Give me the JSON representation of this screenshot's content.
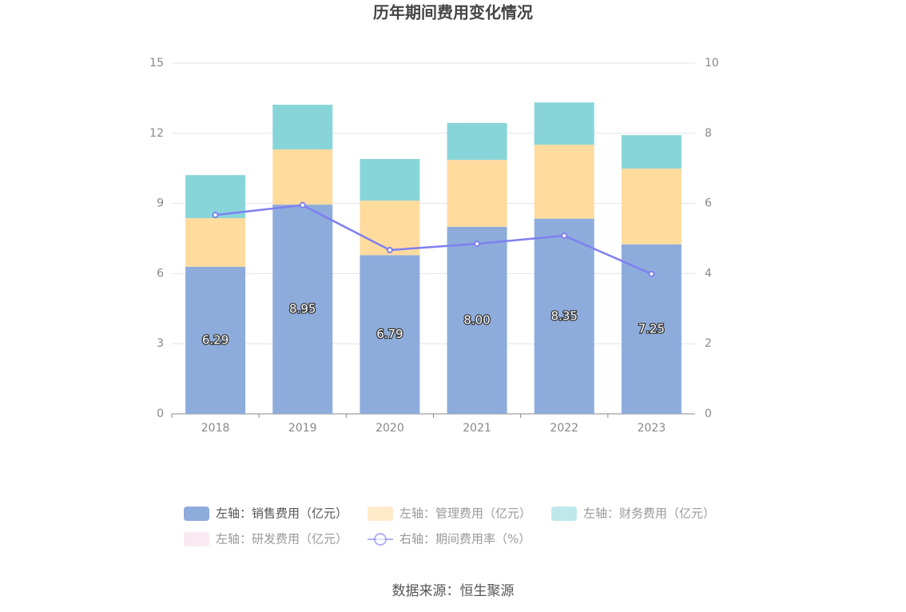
{
  "chart_data": {
    "type": "bar",
    "title": "历年期间费用变化情况",
    "categories": [
      "2018",
      "2019",
      "2020",
      "2021",
      "2022",
      "2023"
    ],
    "series": [
      {
        "name": "左轴：销售费用（亿元）",
        "color": "#8eacdb",
        "values": [
          6.29,
          8.95,
          6.79,
          8.0,
          8.35,
          7.25
        ],
        "value_labels": [
          "6.29",
          "8.95",
          "6.79",
          "8.00",
          "8.35",
          "7.25"
        ]
      },
      {
        "name": "左轴：管理费用（亿元）",
        "color": "#ffdb9e",
        "values": [
          2.08,
          2.36,
          2.33,
          2.86,
          3.16,
          3.24
        ]
      },
      {
        "name": "左轴：财务费用（亿元）",
        "color": "#88d5d9",
        "values": [
          1.84,
          1.91,
          1.78,
          1.58,
          1.81,
          1.43
        ]
      },
      {
        "name": "左轴：研发费用（亿元）",
        "color": "#f3d7ea",
        "values": [
          null,
          null,
          null,
          null,
          null,
          null
        ]
      },
      {
        "name": "右轴：期间费用率（%）",
        "type": "line",
        "axis": "y2",
        "color": "#7f7ff0",
        "values": [
          5.67,
          5.95,
          4.67,
          4.85,
          5.08,
          3.99
        ]
      }
    ],
    "ylim": [
      0,
      15
    ],
    "yticks": [
      0,
      3,
      6,
      9,
      12,
      15
    ],
    "y2lim": [
      0,
      10
    ],
    "y2ticks": [
      0,
      2,
      4,
      6,
      8,
      10
    ],
    "grid": true,
    "legend": "bottom",
    "source": "数据来源：恒生聚源"
  }
}
